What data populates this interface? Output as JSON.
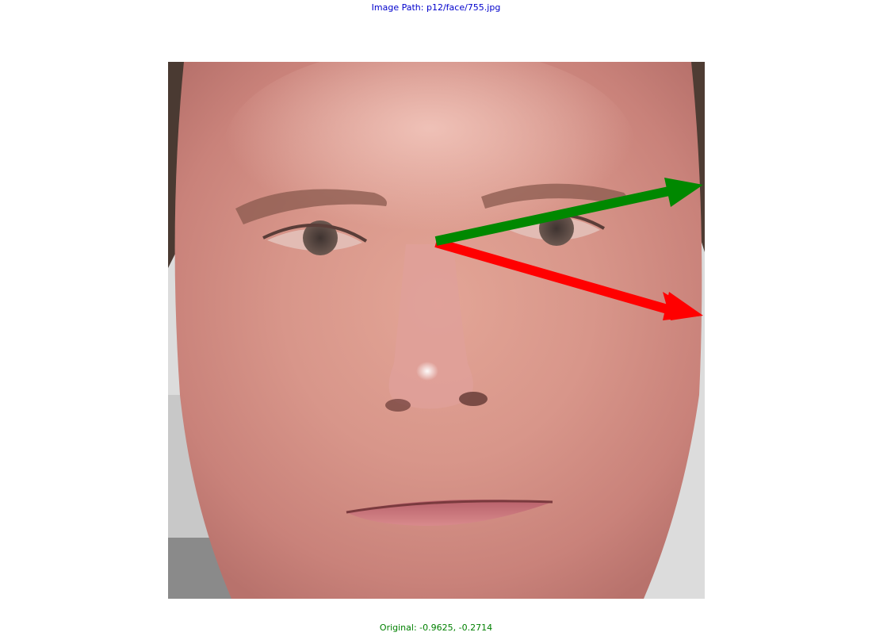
{
  "header": {
    "image_path": "Image Path: p12/face/755.jpg"
  },
  "footer": {
    "original": "Original: -0.9625, -0.2714"
  },
  "figure": {
    "subject": "close-up face photograph",
    "arrows": [
      {
        "name": "gaze-arrow-green",
        "color": "#008800"
      },
      {
        "name": "gaze-arrow-red",
        "color": "#ff0000"
      }
    ],
    "colors": {
      "skin": "#d89a8a",
      "hair": "#4a3a32",
      "background": "#dcdcdc",
      "title": "#0000cc",
      "caption": "#008000"
    }
  }
}
